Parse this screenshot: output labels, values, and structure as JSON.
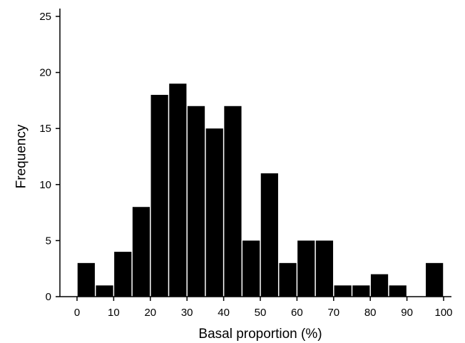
{
  "chart_data": {
    "type": "bar",
    "xlabel": "Basal proportion (%)",
    "ylabel": "Frequency",
    "xlim": [
      0,
      100
    ],
    "ylim": [
      0,
      25
    ],
    "xticks": [
      0,
      10,
      20,
      30,
      40,
      50,
      60,
      70,
      80,
      90,
      100
    ],
    "yticks": [
      0,
      5,
      10,
      15,
      20,
      25
    ],
    "bin_width": 5,
    "bins": [
      {
        "start": 0,
        "end": 5,
        "count": 3
      },
      {
        "start": 5,
        "end": 10,
        "count": 1
      },
      {
        "start": 10,
        "end": 15,
        "count": 4
      },
      {
        "start": 15,
        "end": 20,
        "count": 8
      },
      {
        "start": 20,
        "end": 25,
        "count": 18
      },
      {
        "start": 25,
        "end": 30,
        "count": 19
      },
      {
        "start": 30,
        "end": 35,
        "count": 17
      },
      {
        "start": 35,
        "end": 40,
        "count": 15
      },
      {
        "start": 40,
        "end": 45,
        "count": 17
      },
      {
        "start": 45,
        "end": 50,
        "count": 5
      },
      {
        "start": 50,
        "end": 55,
        "count": 11
      },
      {
        "start": 55,
        "end": 60,
        "count": 3
      },
      {
        "start": 60,
        "end": 65,
        "count": 5
      },
      {
        "start": 65,
        "end": 70,
        "count": 5
      },
      {
        "start": 70,
        "end": 75,
        "count": 1
      },
      {
        "start": 75,
        "end": 80,
        "count": 1
      },
      {
        "start": 80,
        "end": 85,
        "count": 2
      },
      {
        "start": 85,
        "end": 90,
        "count": 1
      },
      {
        "start": 90,
        "end": 95,
        "count": 0
      },
      {
        "start": 95,
        "end": 100,
        "count": 3
      }
    ],
    "grid": false,
    "legend": "none",
    "bar_color": "#000000"
  }
}
